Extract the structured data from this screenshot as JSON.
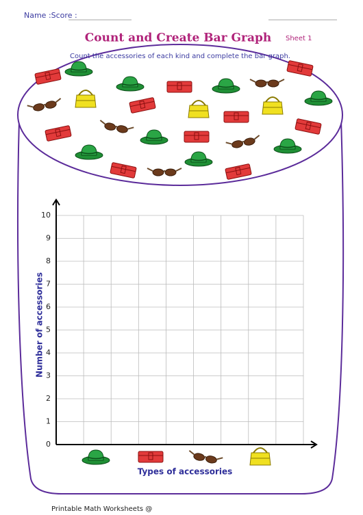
{
  "header": {
    "name_score": "Name :Score :",
    "title": "Count and Create Bar Graph",
    "sheet": "Sheet 1",
    "instruction": "Count the accessories of each kind and complete the bar graph."
  },
  "graph": {
    "y_label": "Number of accessories",
    "x_label": "Types of accessories",
    "yticks": [
      0,
      1,
      2,
      3,
      4,
      5,
      6,
      7,
      8,
      9,
      10
    ]
  },
  "footer": {
    "text": "Printable Math Worksheets @"
  }
}
